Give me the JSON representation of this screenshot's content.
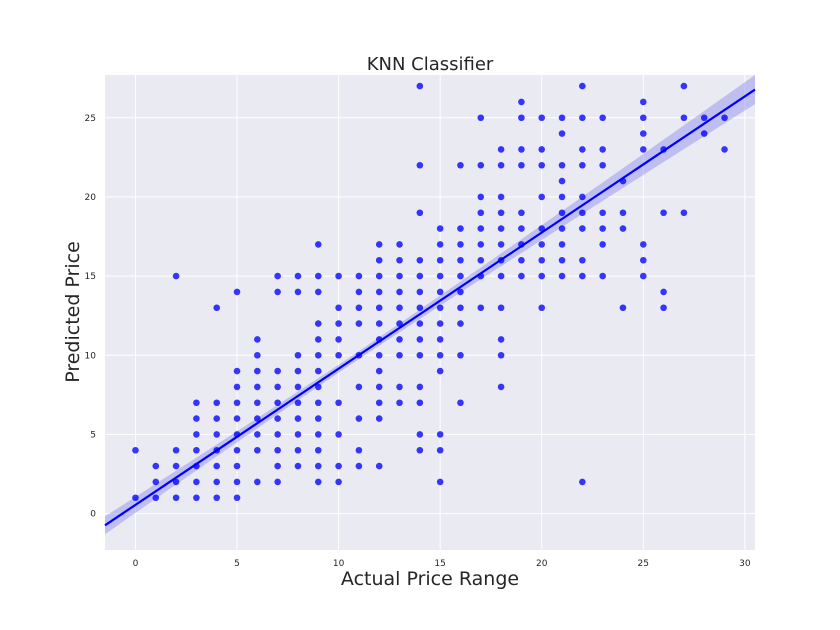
{
  "chart_data": {
    "type": "scatter",
    "title": "KNN Classifier",
    "xlabel": "Actual Price Range",
    "ylabel": "Predicted Price",
    "xlim": [
      -1.5,
      30.5
    ],
    "ylim": [
      -2.3,
      27.7
    ],
    "x_ticks": [
      0,
      5,
      10,
      15,
      20,
      25,
      30
    ],
    "y_ticks": [
      0,
      5,
      10,
      15,
      20,
      25
    ],
    "grid": true,
    "point_color": "#0000ff",
    "line_color": "#0000ff",
    "band_color": "#8a8aee",
    "background_color": "#eaeaf2",
    "regression": {
      "slope": 0.86,
      "intercept": 0.55,
      "ci_halfwidth_at_mean": 0.25,
      "ci_halfwidth_growth": 0.03,
      "x_mean": 10.5
    },
    "points": [
      [
        0,
        1
      ],
      [
        0,
        4
      ],
      [
        1,
        1
      ],
      [
        1,
        2
      ],
      [
        1,
        3
      ],
      [
        2,
        1
      ],
      [
        2,
        2
      ],
      [
        2,
        3
      ],
      [
        2,
        4
      ],
      [
        2,
        15
      ],
      [
        3,
        1
      ],
      [
        3,
        2
      ],
      [
        3,
        3
      ],
      [
        3,
        4
      ],
      [
        3,
        5
      ],
      [
        3,
        6
      ],
      [
        3,
        7
      ],
      [
        4,
        1
      ],
      [
        4,
        2
      ],
      [
        4,
        3
      ],
      [
        4,
        4
      ],
      [
        4,
        5
      ],
      [
        4,
        6
      ],
      [
        4,
        7
      ],
      [
        4,
        13
      ],
      [
        5,
        1
      ],
      [
        5,
        2
      ],
      [
        5,
        3
      ],
      [
        5,
        4
      ],
      [
        5,
        5
      ],
      [
        5,
        6
      ],
      [
        5,
        7
      ],
      [
        5,
        8
      ],
      [
        5,
        9
      ],
      [
        5,
        14
      ],
      [
        6,
        2
      ],
      [
        6,
        4
      ],
      [
        6,
        5
      ],
      [
        6,
        6
      ],
      [
        6,
        7
      ],
      [
        6,
        8
      ],
      [
        6,
        9
      ],
      [
        6,
        10
      ],
      [
        6,
        11
      ],
      [
        7,
        2
      ],
      [
        7,
        3
      ],
      [
        7,
        4
      ],
      [
        7,
        5
      ],
      [
        7,
        6
      ],
      [
        7,
        7
      ],
      [
        7,
        8
      ],
      [
        7,
        9
      ],
      [
        7,
        14
      ],
      [
        7,
        15
      ],
      [
        8,
        3
      ],
      [
        8,
        4
      ],
      [
        8,
        5
      ],
      [
        8,
        6
      ],
      [
        8,
        7
      ],
      [
        8,
        8
      ],
      [
        8,
        9
      ],
      [
        8,
        10
      ],
      [
        8,
        14
      ],
      [
        8,
        15
      ],
      [
        9,
        2
      ],
      [
        9,
        3
      ],
      [
        9,
        4
      ],
      [
        9,
        5
      ],
      [
        9,
        6
      ],
      [
        9,
        7
      ],
      [
        9,
        8
      ],
      [
        9,
        9
      ],
      [
        9,
        10
      ],
      [
        9,
        11
      ],
      [
        9,
        12
      ],
      [
        9,
        14
      ],
      [
        9,
        15
      ],
      [
        9,
        17
      ],
      [
        10,
        2
      ],
      [
        10,
        3
      ],
      [
        10,
        5
      ],
      [
        10,
        7
      ],
      [
        10,
        10
      ],
      [
        10,
        11
      ],
      [
        10,
        12
      ],
      [
        10,
        13
      ],
      [
        10,
        15
      ],
      [
        11,
        3
      ],
      [
        11,
        4
      ],
      [
        11,
        6
      ],
      [
        11,
        8
      ],
      [
        11,
        10
      ],
      [
        11,
        12
      ],
      [
        11,
        13
      ],
      [
        11,
        14
      ],
      [
        11,
        15
      ],
      [
        12,
        3
      ],
      [
        12,
        6
      ],
      [
        12,
        7
      ],
      [
        12,
        8
      ],
      [
        12,
        9
      ],
      [
        12,
        10
      ],
      [
        12,
        11
      ],
      [
        12,
        12
      ],
      [
        12,
        13
      ],
      [
        12,
        14
      ],
      [
        12,
        15
      ],
      [
        12,
        16
      ],
      [
        12,
        17
      ],
      [
        13,
        7
      ],
      [
        13,
        8
      ],
      [
        13,
        10
      ],
      [
        13,
        11
      ],
      [
        13,
        12
      ],
      [
        13,
        13
      ],
      [
        13,
        14
      ],
      [
        13,
        15
      ],
      [
        13,
        16
      ],
      [
        13,
        17
      ],
      [
        14,
        4
      ],
      [
        14,
        5
      ],
      [
        14,
        7
      ],
      [
        14,
        8
      ],
      [
        14,
        10
      ],
      [
        14,
        11
      ],
      [
        14,
        12
      ],
      [
        14,
        13
      ],
      [
        14,
        14
      ],
      [
        14,
        15
      ],
      [
        14,
        16
      ],
      [
        14,
        19
      ],
      [
        14,
        22
      ],
      [
        14,
        27
      ],
      [
        15,
        2
      ],
      [
        15,
        4
      ],
      [
        15,
        5
      ],
      [
        15,
        9
      ],
      [
        15,
        10
      ],
      [
        15,
        11
      ],
      [
        15,
        12
      ],
      [
        15,
        13
      ],
      [
        15,
        14
      ],
      [
        15,
        15
      ],
      [
        15,
        16
      ],
      [
        15,
        17
      ],
      [
        15,
        18
      ],
      [
        16,
        7
      ],
      [
        16,
        10
      ],
      [
        16,
        12
      ],
      [
        16,
        13
      ],
      [
        16,
        14
      ],
      [
        16,
        15
      ],
      [
        16,
        16
      ],
      [
        16,
        17
      ],
      [
        16,
        18
      ],
      [
        16,
        22
      ],
      [
        17,
        13
      ],
      [
        17,
        15
      ],
      [
        17,
        16
      ],
      [
        17,
        17
      ],
      [
        17,
        18
      ],
      [
        17,
        19
      ],
      [
        17,
        20
      ],
      [
        17,
        22
      ],
      [
        17,
        25
      ],
      [
        18,
        8
      ],
      [
        18,
        10
      ],
      [
        18,
        11
      ],
      [
        18,
        13
      ],
      [
        18,
        15
      ],
      [
        18,
        16
      ],
      [
        18,
        17
      ],
      [
        18,
        18
      ],
      [
        18,
        19
      ],
      [
        18,
        20
      ],
      [
        18,
        22
      ],
      [
        18,
        23
      ],
      [
        19,
        15
      ],
      [
        19,
        16
      ],
      [
        19,
        17
      ],
      [
        19,
        18
      ],
      [
        19,
        19
      ],
      [
        19,
        22
      ],
      [
        19,
        23
      ],
      [
        19,
        25
      ],
      [
        19,
        26
      ],
      [
        20,
        13
      ],
      [
        20,
        15
      ],
      [
        20,
        16
      ],
      [
        20,
        17
      ],
      [
        20,
        18
      ],
      [
        20,
        20
      ],
      [
        20,
        22
      ],
      [
        20,
        23
      ],
      [
        20,
        25
      ],
      [
        21,
        15
      ],
      [
        21,
        16
      ],
      [
        21,
        17
      ],
      [
        21,
        18
      ],
      [
        21,
        19
      ],
      [
        21,
        20
      ],
      [
        21,
        21
      ],
      [
        21,
        22
      ],
      [
        21,
        24
      ],
      [
        21,
        25
      ],
      [
        22,
        2
      ],
      [
        22,
        15
      ],
      [
        22,
        16
      ],
      [
        22,
        18
      ],
      [
        22,
        19
      ],
      [
        22,
        20
      ],
      [
        22,
        22
      ],
      [
        22,
        23
      ],
      [
        22,
        25
      ],
      [
        22,
        27
      ],
      [
        23,
        15
      ],
      [
        23,
        17
      ],
      [
        23,
        18
      ],
      [
        23,
        19
      ],
      [
        23,
        22
      ],
      [
        23,
        23
      ],
      [
        23,
        25
      ],
      [
        24,
        13
      ],
      [
        24,
        18
      ],
      [
        24,
        19
      ],
      [
        24,
        21
      ],
      [
        25,
        15
      ],
      [
        25,
        16
      ],
      [
        25,
        17
      ],
      [
        25,
        23
      ],
      [
        25,
        24
      ],
      [
        25,
        25
      ],
      [
        25,
        26
      ],
      [
        26,
        13
      ],
      [
        26,
        14
      ],
      [
        26,
        19
      ],
      [
        26,
        23
      ],
      [
        27,
        19
      ],
      [
        27,
        25
      ],
      [
        27,
        27
      ],
      [
        28,
        24
      ],
      [
        28,
        25
      ],
      [
        29,
        23
      ],
      [
        29,
        25
      ]
    ]
  }
}
